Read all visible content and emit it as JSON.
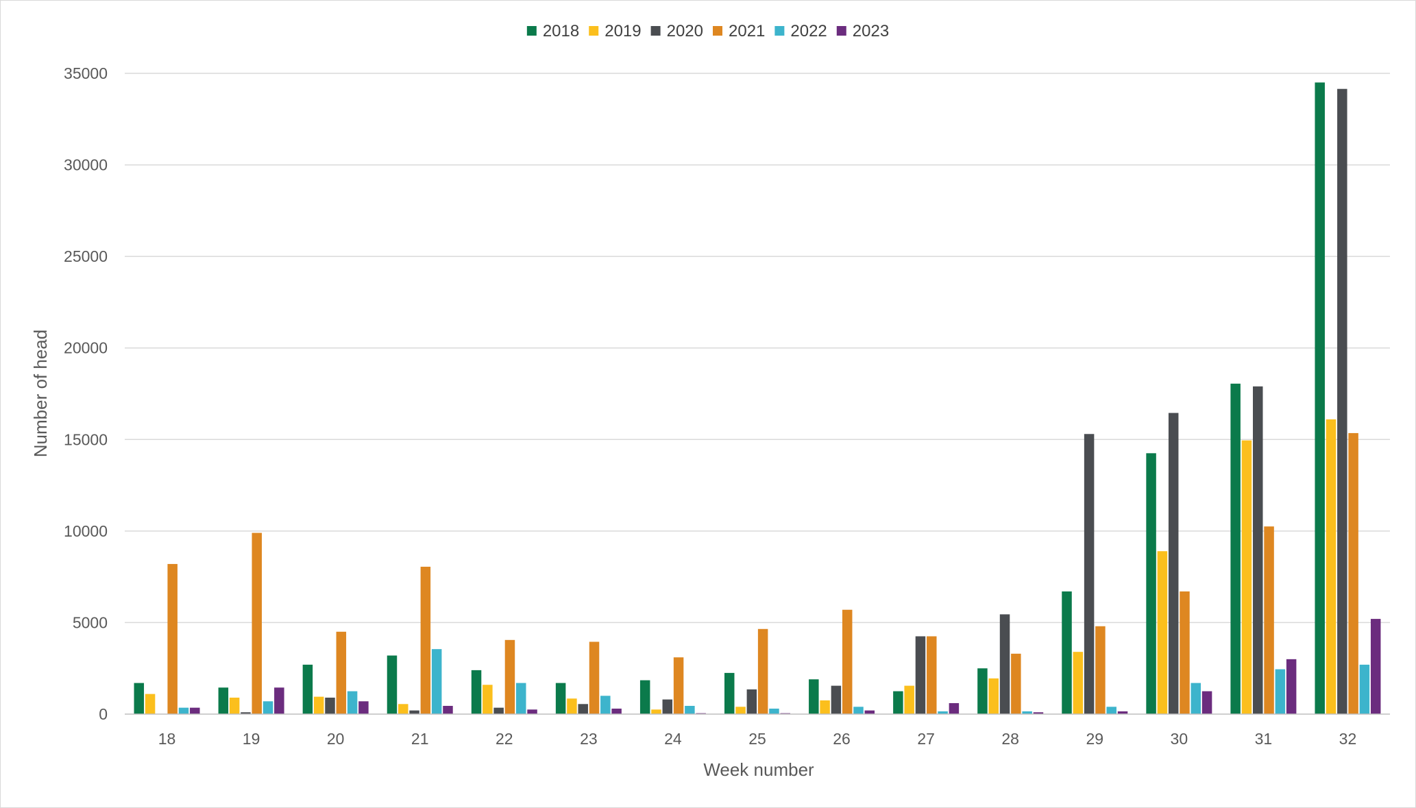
{
  "chart_data": {
    "type": "bar",
    "title": "",
    "xlabel": "Week number",
    "ylabel": "Number of head",
    "ylim": [
      0,
      35000
    ],
    "yticks": [
      0,
      5000,
      10000,
      15000,
      20000,
      25000,
      30000,
      35000
    ],
    "grid": true,
    "legend_position": "top-center",
    "categories": [
      "18",
      "19",
      "20",
      "21",
      "22",
      "23",
      "24",
      "25",
      "26",
      "27",
      "28",
      "29",
      "30",
      "31",
      "32"
    ],
    "series": [
      {
        "name": "2018",
        "color": "#0B7A4B",
        "values": [
          1700,
          1450,
          2700,
          3200,
          2400,
          1700,
          1850,
          2250,
          1900,
          1250,
          2500,
          6700,
          14250,
          18050,
          34500
        ]
      },
      {
        "name": "2019",
        "color": "#FBBF1D",
        "values": [
          1100,
          900,
          950,
          550,
          1600,
          850,
          250,
          400,
          750,
          1550,
          1950,
          3400,
          8900,
          14950,
          16100
        ]
      },
      {
        "name": "2020",
        "color": "#4A4D51",
        "values": [
          0,
          100,
          900,
          200,
          350,
          550,
          800,
          1350,
          1550,
          4250,
          5450,
          15300,
          16450,
          17900,
          34150
        ]
      },
      {
        "name": "2021",
        "color": "#DE8721",
        "values": [
          8200,
          9900,
          4500,
          8050,
          4050,
          3950,
          3100,
          4650,
          5700,
          4250,
          3300,
          4800,
          6700,
          10250,
          15350
        ]
      },
      {
        "name": "2022",
        "color": "#3DB4CC",
        "values": [
          350,
          700,
          1250,
          3550,
          1700,
          1000,
          450,
          300,
          400,
          150,
          150,
          400,
          1700,
          2450,
          2700
        ]
      },
      {
        "name": "2023",
        "color": "#6B2C7E",
        "values": [
          350,
          1450,
          700,
          450,
          250,
          300,
          50,
          50,
          200,
          600,
          100,
          150,
          1250,
          3000,
          5200
        ]
      }
    ]
  }
}
